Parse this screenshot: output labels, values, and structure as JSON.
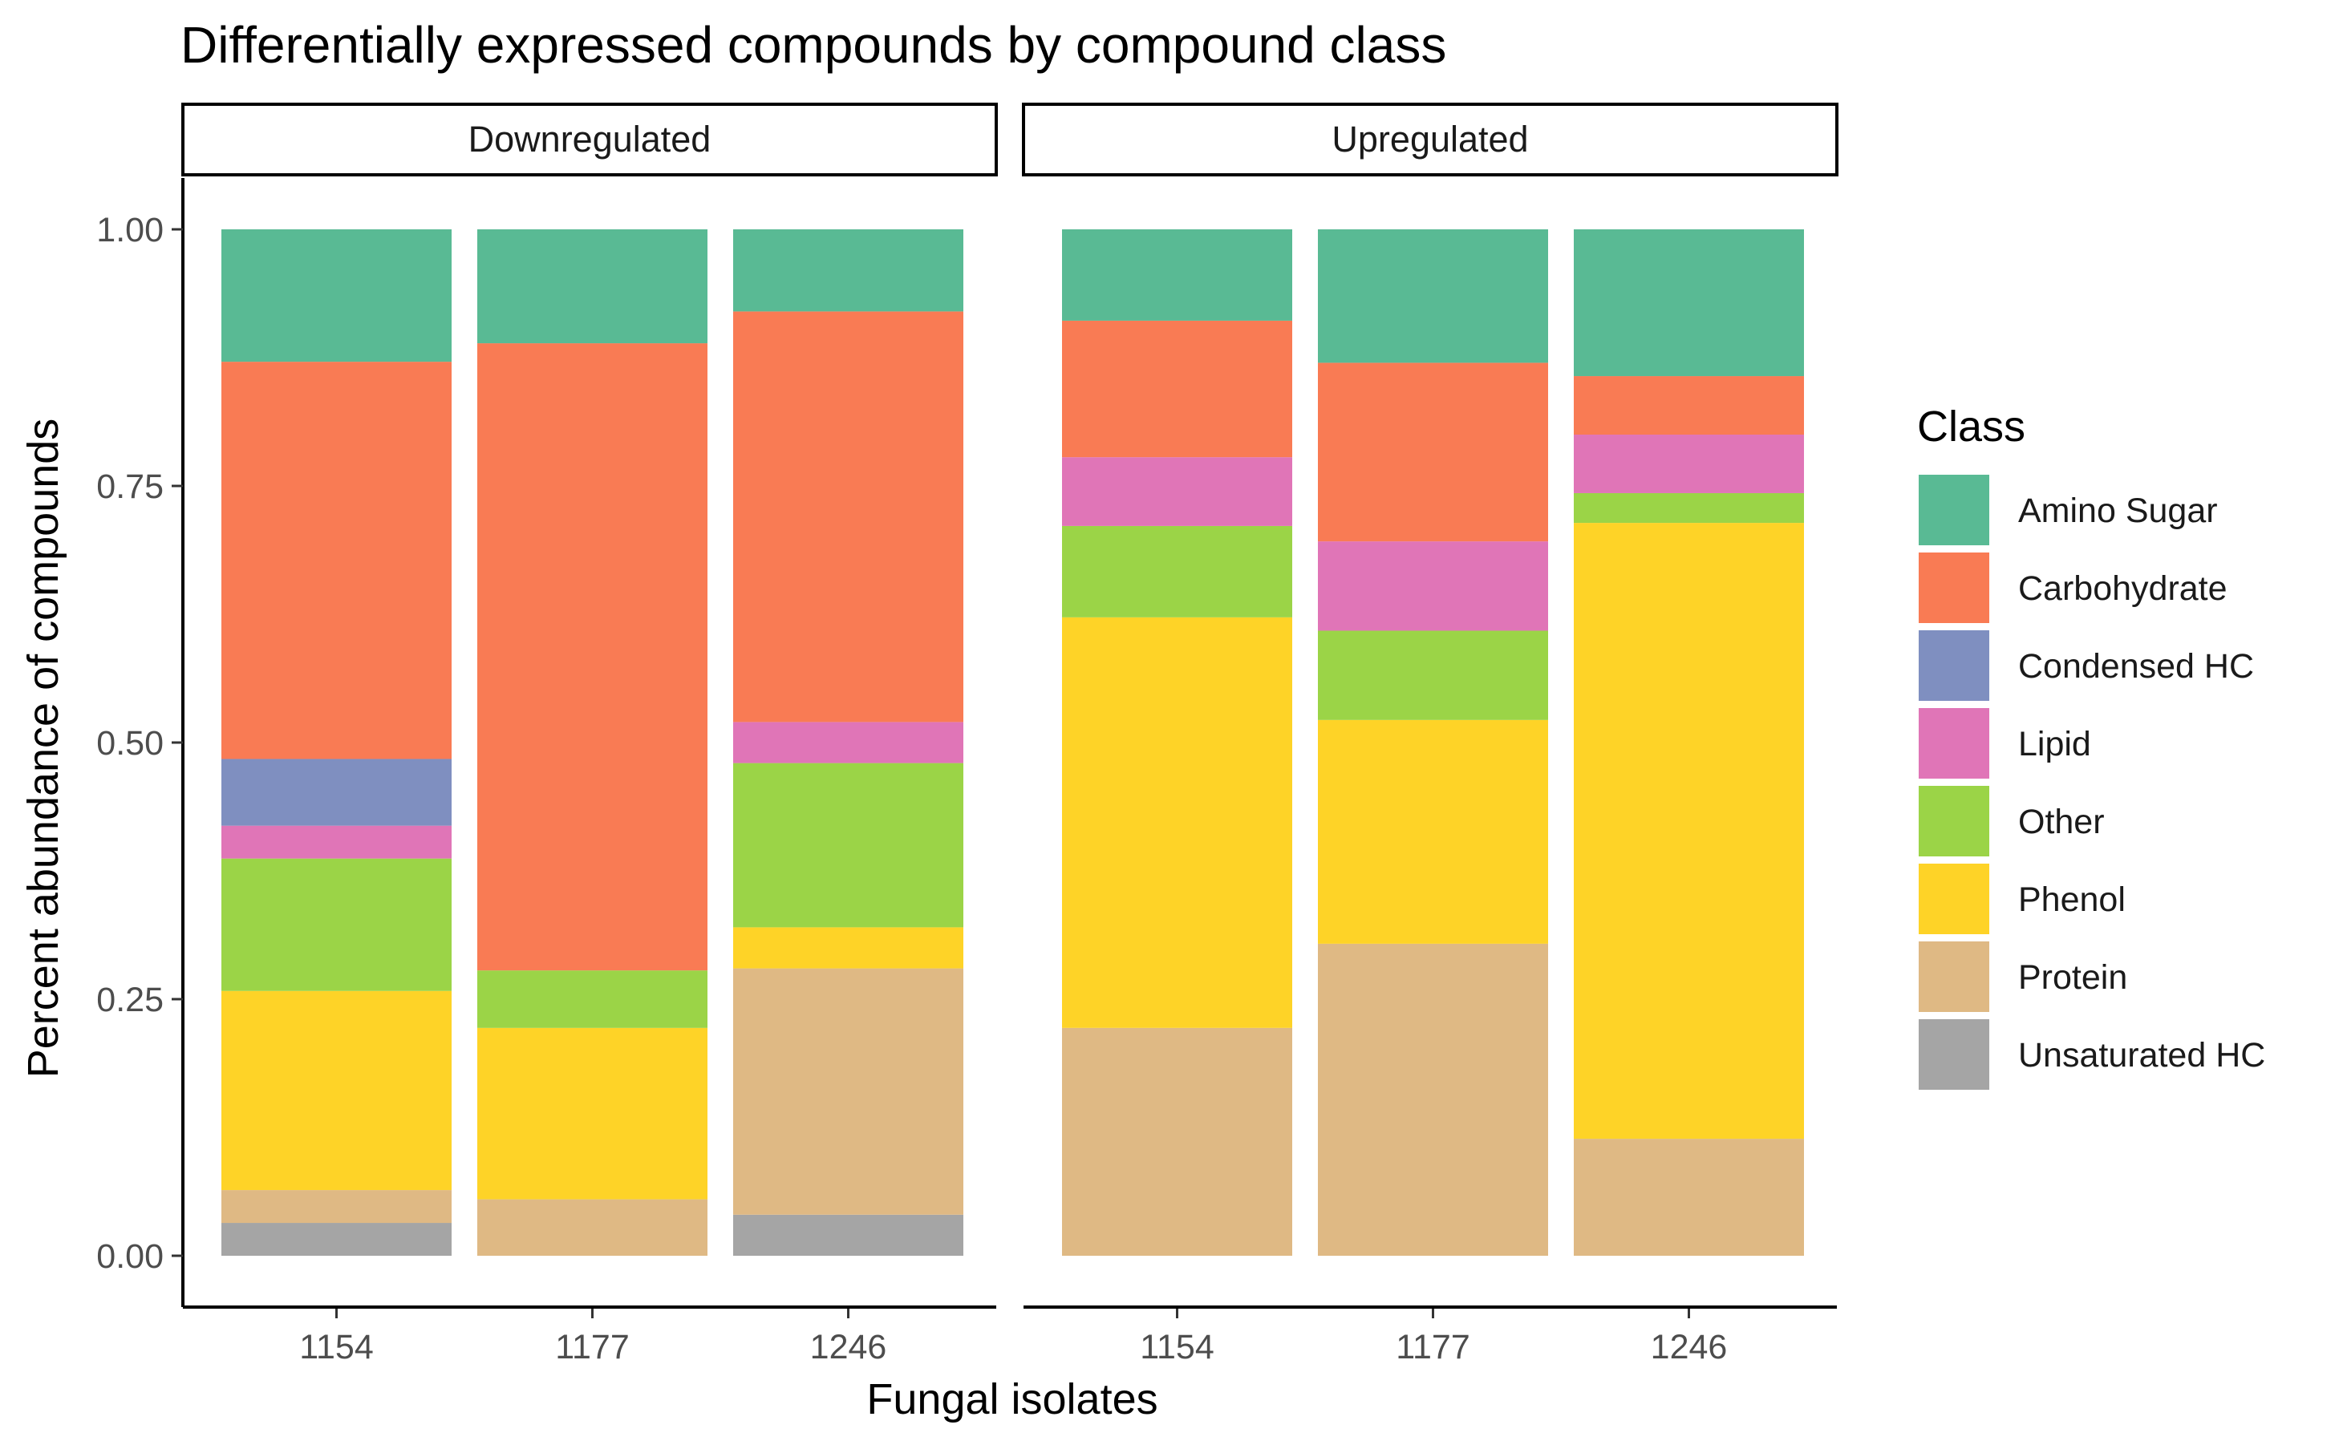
{
  "chart_data": {
    "type": "bar",
    "stacked": true,
    "title": "Differentially expressed compounds by compound class",
    "xlabel": "Fungal isolates",
    "ylabel": "Percent abundance of compounds",
    "ylim": [
      -0.05,
      1.05
    ],
    "yticks": [
      0.0,
      0.25,
      0.5,
      0.75,
      1.0
    ],
    "ytick_labels": [
      "0.00",
      "0.25",
      "0.50",
      "0.75",
      "1.00"
    ],
    "categories": [
      "1154",
      "1177",
      "1246"
    ],
    "legend_title": "Class",
    "legend_position": "right",
    "classes": [
      {
        "name": "Amino Sugar",
        "color": "#59BA94"
      },
      {
        "name": "Carbohydrate",
        "color": "#F97B54"
      },
      {
        "name": "Condensed HC",
        "color": "#7F8FC0"
      },
      {
        "name": "Lipid",
        "color": "#E075B7"
      },
      {
        "name": "Other",
        "color": "#9BD447"
      },
      {
        "name": "Phenol",
        "color": "#FED327"
      },
      {
        "name": "Protein",
        "color": "#DFB984"
      },
      {
        "name": "Unsaturated HC",
        "color": "#A5A5A5"
      }
    ],
    "stack_order_bottom_to_top": [
      "Unsaturated HC",
      "Protein",
      "Phenol",
      "Other",
      "Lipid",
      "Condensed HC",
      "Carbohydrate",
      "Amino Sugar"
    ],
    "panels": [
      {
        "label": "Downregulated",
        "bars": [
          {
            "category": "1154",
            "values": {
              "Amino Sugar": 0.129,
              "Carbohydrate": 0.387,
              "Condensed HC": 0.065,
              "Lipid": 0.032,
              "Other": 0.129,
              "Phenol": 0.194,
              "Protein": 0.032,
              "Unsaturated HC": 0.032
            }
          },
          {
            "category": "1177",
            "values": {
              "Amino Sugar": 0.111,
              "Carbohydrate": 0.611,
              "Condensed HC": 0,
              "Lipid": 0,
              "Other": 0.056,
              "Phenol": 0.167,
              "Protein": 0.055,
              "Unsaturated HC": 0
            }
          },
          {
            "category": "1246",
            "values": {
              "Amino Sugar": 0.08,
              "Carbohydrate": 0.4,
              "Condensed HC": 0,
              "Lipid": 0.04,
              "Other": 0.16,
              "Phenol": 0.04,
              "Protein": 0.24,
              "Unsaturated HC": 0.04
            }
          }
        ]
      },
      {
        "label": "Upregulated",
        "bars": [
          {
            "category": "1154",
            "values": {
              "Amino Sugar": 0.089,
              "Carbohydrate": 0.133,
              "Condensed HC": 0,
              "Lipid": 0.067,
              "Other": 0.089,
              "Phenol": 0.4,
              "Protein": 0.222,
              "Unsaturated HC": 0
            }
          },
          {
            "category": "1177",
            "values": {
              "Amino Sugar": 0.13,
              "Carbohydrate": 0.174,
              "Condensed HC": 0,
              "Lipid": 0.087,
              "Other": 0.087,
              "Phenol": 0.218,
              "Protein": 0.304,
              "Unsaturated HC": 0
            }
          },
          {
            "category": "1246",
            "values": {
              "Amino Sugar": 0.143,
              "Carbohydrate": 0.057,
              "Condensed HC": 0,
              "Lipid": 0.057,
              "Other": 0.029,
              "Phenol": 0.6,
              "Protein": 0.114,
              "Unsaturated HC": 0
            }
          }
        ]
      }
    ]
  }
}
